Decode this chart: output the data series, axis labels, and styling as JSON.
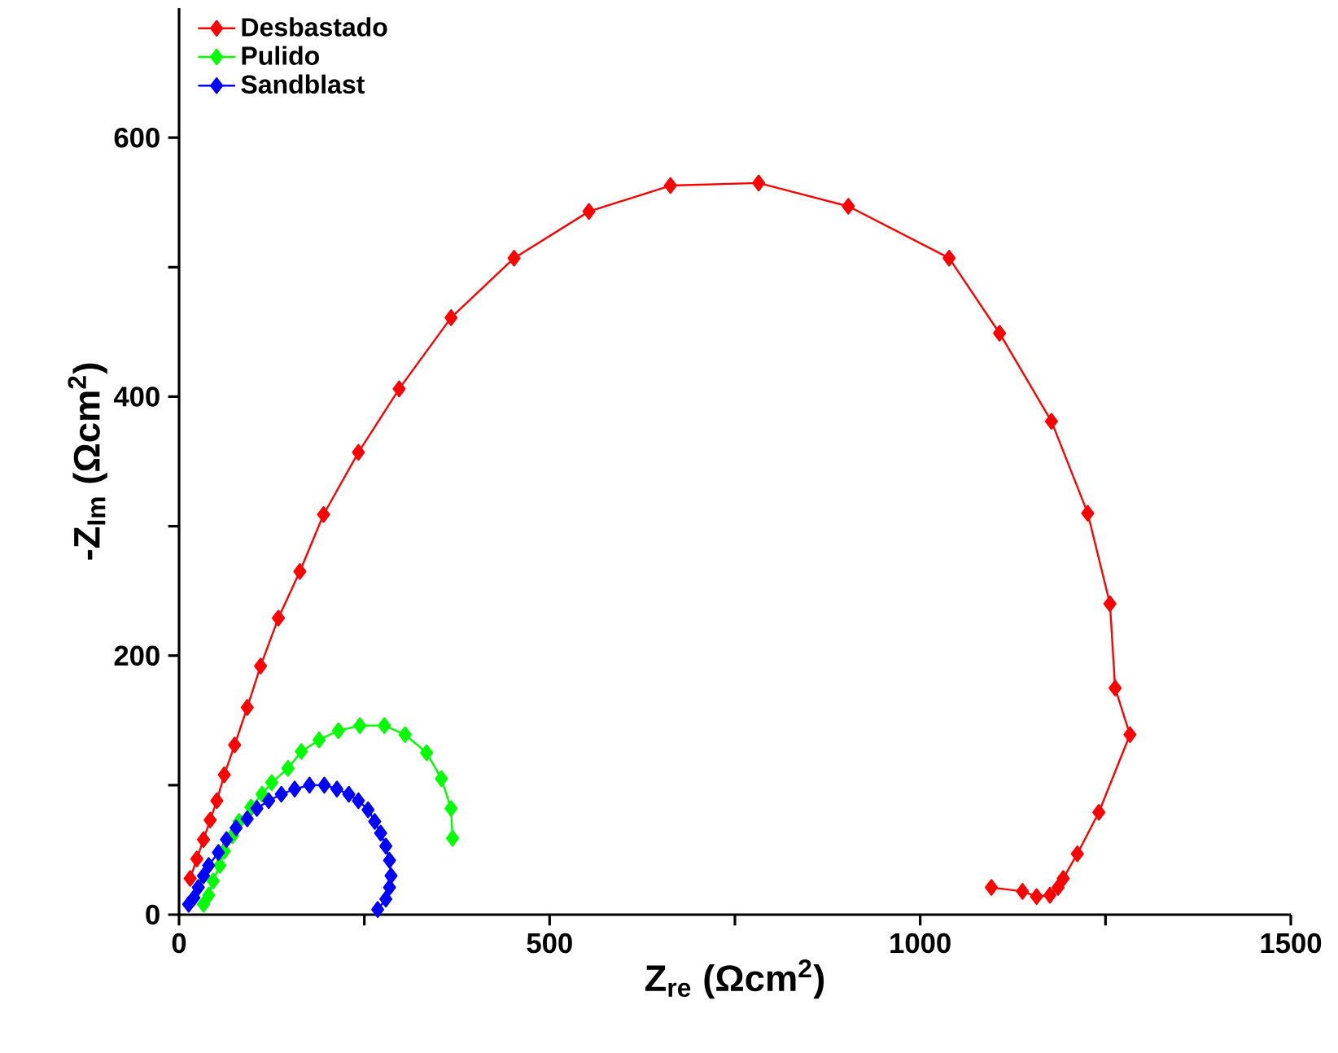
{
  "chart_data": {
    "type": "line",
    "xlabel": "Z$_{re}$ (Ωcm$^{2}$)",
    "ylabel": "-Z$_{Im}$ (Ωcm$^{2}$)",
    "xlim": [
      0,
      1500
    ],
    "ylim": [
      0,
      700
    ],
    "xticks": [
      0,
      {
        "value": 250,
        "label": null
      },
      500,
      {
        "value": 750,
        "label": null
      },
      1000,
      {
        "value": 1250,
        "label": null
      },
      1500
    ],
    "yticks": [
      0,
      {
        "value": 100,
        "label": null
      },
      200,
      {
        "value": 300,
        "label": null
      },
      400,
      {
        "value": 500,
        "label": null
      },
      600
    ],
    "legend": "top left",
    "marker": "diamond",
    "line_style": "solid",
    "grid": false,
    "series": [
      {
        "name": "Desbastado",
        "color": "#ff0000",
        "x": [
          1096,
          1138,
          1157,
          1175,
          1186,
          1193,
          1212,
          1241,
          1283,
          1263,
          1256,
          1226,
          1177,
          1107,
          1039,
          903,
          782,
          663,
          553,
          452,
          367,
          297,
          242,
          195,
          163,
          134,
          110,
          92,
          75,
          61,
          51,
          42,
          33,
          24,
          15
        ],
        "values": [
          21,
          18,
          14,
          15,
          21,
          28,
          47,
          79,
          139,
          175,
          240,
          310,
          381,
          449,
          507,
          547,
          565,
          563,
          543,
          507,
          461,
          406,
          357,
          309,
          265,
          229,
          192,
          160,
          131,
          108,
          88,
          73,
          58,
          43,
          28
        ]
      },
      {
        "name": "Pulido",
        "color": "#00ff00",
        "x": [
          369,
          367,
          354,
          334,
          305,
          277,
          244,
          215,
          189,
          165,
          147,
          125,
          112,
          97,
          81,
          72,
          61,
          55,
          46,
          40,
          33
        ],
        "values": [
          59,
          82,
          105,
          125,
          139,
          146,
          146,
          142,
          135,
          126,
          113,
          102,
          93,
          83,
          72,
          61,
          49,
          38,
          26,
          15,
          8
        ]
      },
      {
        "name": "Sandblast",
        "color": "#0000ff",
        "x": [
          268,
          279,
          284,
          286,
          284,
          279,
          272,
          264,
          255,
          242,
          229,
          213,
          196,
          176,
          156,
          138,
          121,
          105,
          92,
          77,
          64,
          53,
          40,
          33,
          26,
          20,
          13
        ],
        "values": [
          4,
          12,
          21,
          30,
          42,
          53,
          63,
          72,
          81,
          88,
          93,
          97,
          100,
          100,
          97,
          93,
          88,
          82,
          74,
          67,
          58,
          48,
          38,
          30,
          21,
          13,
          8
        ]
      }
    ]
  }
}
